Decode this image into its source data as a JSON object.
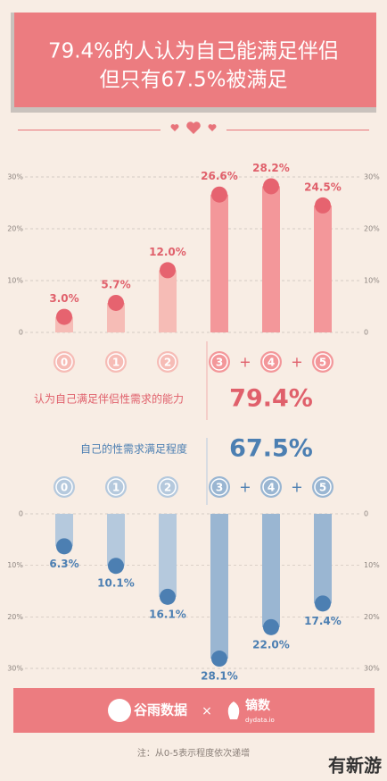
{
  "header": {
    "title_lines": [
      "79.4%的人认为自己能满足伴侣",
      "但只有67.5%被满足"
    ]
  },
  "chart_data": [
    {
      "type": "bar",
      "categories": [
        "0",
        "1",
        "2",
        "3",
        "4",
        "5"
      ],
      "values": [
        3.0,
        5.7,
        12.0,
        26.6,
        28.2,
        24.5
      ],
      "value_labels": [
        "3.0%",
        "5.7%",
        "12.0%",
        "26.6%",
        "28.2%",
        "24.5%"
      ],
      "colors": [
        "#f6bcb6",
        "#f6bcb6",
        "#f6bcb6",
        "#f3979a",
        "#f3979a",
        "#f3979a"
      ],
      "dot_color": "#e6636f",
      "text_color": "#e0606b",
      "ylim": [
        0,
        30
      ],
      "yticks": [
        0,
        {
          "value": 10,
          "label": "10%"
        },
        {
          "value": 20,
          "label": "20%"
        },
        {
          "value": 30,
          "label": "30%"
        }
      ],
      "y_inverted": false,
      "annotation": {
        "label": "认为自己满足伴侣性需求的能力",
        "value": "79.4%"
      }
    },
    {
      "type": "bar",
      "categories": [
        "0",
        "1",
        "2",
        "3",
        "4",
        "5"
      ],
      "values": [
        6.3,
        10.1,
        16.1,
        28.1,
        22.0,
        17.4
      ],
      "value_labels": [
        "6.3%",
        "10.1%",
        "16.1%",
        "28.1%",
        "22.0%",
        "17.4%"
      ],
      "colors": [
        "#b5c9dd",
        "#b5c9dd",
        "#b5c9dd",
        "#9ab6d2",
        "#9ab6d2",
        "#9ab6d2"
      ],
      "dot_color": "#4c7fb2",
      "text_color": "#4c7fb2",
      "ylim": [
        0,
        30
      ],
      "yticks": [
        0,
        {
          "value": 10,
          "label": "10%"
        },
        {
          "value": 20,
          "label": "20%"
        },
        {
          "value": 30,
          "label": "30%"
        }
      ],
      "y_inverted": true,
      "annotation": {
        "label": "自己的性需求满足程度",
        "value": "67.5%"
      }
    }
  ],
  "operator": "+",
  "footer": {
    "logos": [
      "谷雨数据",
      "镝数"
    ],
    "logo_sub": "dydata.io",
    "separator": "×",
    "note": "注：从0-5表示程度依次递增",
    "watermark": "有新游"
  }
}
